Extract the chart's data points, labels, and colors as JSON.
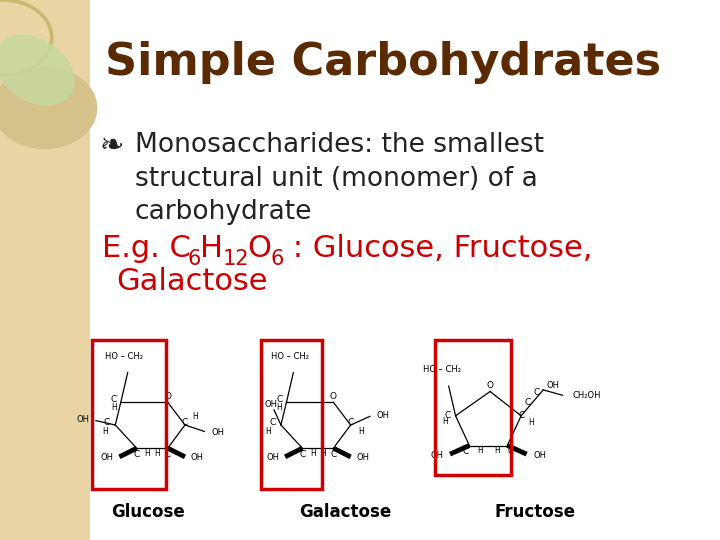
{
  "title": "Simple Carbohydrates",
  "title_color": "#5C2A00",
  "title_fontsize": 32,
  "bullet_symbol": "❧",
  "bullet_text_line1": "Monosaccharides: the smallest",
  "bullet_text_line2": "structural unit (monomer) of a",
  "bullet_text_line3": "carbohydrate",
  "bullet_fontsize": 19,
  "bullet_color": "#222222",
  "formula_color": "#CC0000",
  "formula_fontsize": 22,
  "bg_color": "#FFFFFF",
  "left_panel_color": "#E8D5A3",
  "red_box_color": "#CC0000",
  "molecule_labels": [
    "Glucose",
    "Galactose",
    "Fructose"
  ],
  "label_fontsize": 12
}
